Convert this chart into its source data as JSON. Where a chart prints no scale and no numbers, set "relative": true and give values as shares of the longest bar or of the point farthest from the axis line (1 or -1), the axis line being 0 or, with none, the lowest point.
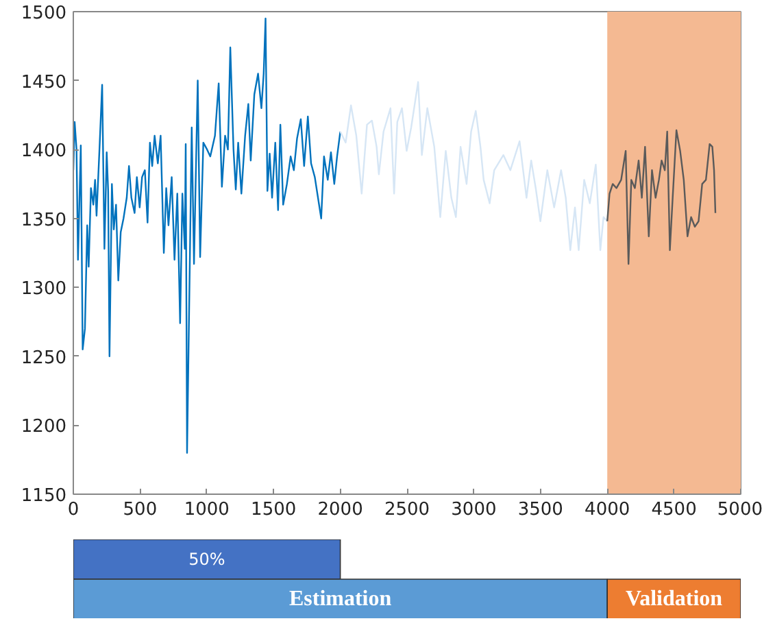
{
  "chart_data": [
    {
      "type": "line",
      "xlim": [
        0,
        5000
      ],
      "ylim": [
        1150,
        1500
      ],
      "xticks": [
        0,
        500,
        1000,
        1500,
        2000,
        2500,
        3000,
        3500,
        4000,
        4500,
        5000
      ],
      "yticks": [
        1150,
        1200,
        1250,
        1300,
        1350,
        1400,
        1450,
        1500
      ],
      "grid": false,
      "marker": "none",
      "line_style": "solid",
      "bands": [
        {
          "axis": "x",
          "from": 4000,
          "to": 5000,
          "color": "#f4b992"
        }
      ],
      "series": [
        {
          "color": "#0072bd",
          "x": [
            0,
            10,
            24,
            35,
            45,
            56,
            70,
            87,
            104,
            115,
            132,
            150,
            163,
            174,
            198,
            216,
            233,
            250,
            261,
            271,
            289,
            303,
            320,
            337,
            355,
            376,
            400,
            417,
            435,
            459,
            476,
            497,
            515,
            536,
            556,
            574,
            591,
            609,
            633,
            654,
            678,
            696,
            713,
            737,
            758,
            779,
            800,
            817,
            835,
            842,
            852,
            873,
            887,
            904,
            932,
            950,
            974,
            1002,
            1026,
            1061,
            1089,
            1113,
            1137,
            1158,
            1176,
            1200,
            1217,
            1235,
            1259,
            1287,
            1311,
            1329,
            1356,
            1384,
            1409,
            1426,
            1440,
            1454,
            1471,
            1489,
            1513,
            1534,
            1551,
            1572,
            1600,
            1628,
            1652,
            1676,
            1704,
            1729,
            1757,
            1781,
            1809,
            1857,
            1878,
            1906,
            1930,
            1955,
            1976,
            2000
          ],
          "values": [
            1385,
            1420,
            1400,
            1320,
            1360,
            1403,
            1255,
            1270,
            1345,
            1315,
            1372,
            1360,
            1378,
            1352,
            1405,
            1447,
            1328,
            1398,
            1370,
            1250,
            1375,
            1342,
            1360,
            1305,
            1340,
            1350,
            1365,
            1388,
            1365,
            1354,
            1380,
            1358,
            1380,
            1385,
            1347,
            1405,
            1388,
            1410,
            1390,
            1410,
            1325,
            1372,
            1345,
            1380,
            1320,
            1368,
            1274,
            1368,
            1328,
            1404,
            1180,
            1320,
            1416,
            1317,
            1450,
            1322,
            1405,
            1400,
            1395,
            1410,
            1448,
            1373,
            1410,
            1400,
            1474,
            1400,
            1371,
            1405,
            1368,
            1410,
            1433,
            1392,
            1440,
            1455,
            1430,
            1455,
            1495,
            1370,
            1397,
            1365,
            1405,
            1356,
            1418,
            1360,
            1375,
            1395,
            1385,
            1408,
            1422,
            1388,
            1424,
            1390,
            1380,
            1350,
            1395,
            1378,
            1398,
            1375,
            1395,
            1413
          ]
        },
        {
          "color": "#d6e6f5",
          "x": [
            2000,
            2040,
            2080,
            2120,
            2160,
            2200,
            2237,
            2272,
            2289,
            2324,
            2376,
            2403,
            2427,
            2462,
            2497,
            2531,
            2583,
            2611,
            2652,
            2704,
            2749,
            2790,
            2832,
            2866,
            2901,
            2946,
            2980,
            3015,
            3050,
            3074,
            3119,
            3153,
            3222,
            3274,
            3343,
            3395,
            3430,
            3464,
            3499,
            3551,
            3602,
            3654,
            3689,
            3723,
            3758,
            3786,
            3827,
            3869,
            3914,
            3948,
            3972,
            4000
          ],
          "values": [
            1413,
            1405,
            1432,
            1410,
            1368,
            1418,
            1421,
            1402,
            1382,
            1413,
            1430,
            1368,
            1420,
            1430,
            1399,
            1416,
            1449,
            1396,
            1430,
            1402,
            1351,
            1399,
            1365,
            1351,
            1402,
            1375,
            1413,
            1428,
            1402,
            1378,
            1361,
            1385,
            1396,
            1385,
            1406,
            1365,
            1392,
            1372,
            1348,
            1385,
            1358,
            1385,
            1365,
            1327,
            1358,
            1327,
            1378,
            1361,
            1389,
            1327,
            1351,
            1348
          ]
        },
        {
          "color": "#5a5a5a",
          "x": [
            4000,
            4017,
            4041,
            4069,
            4104,
            4138,
            4159,
            4180,
            4207,
            4235,
            4259,
            4283,
            4311,
            4335,
            4362,
            4387,
            4407,
            4431,
            4449,
            4469,
            4490,
            4518,
            4546,
            4573,
            4601,
            4628,
            4656,
            4684,
            4711,
            4739,
            4767,
            4787,
            4800,
            4810
          ],
          "values": [
            1348,
            1368,
            1375,
            1372,
            1378,
            1399,
            1317,
            1378,
            1372,
            1392,
            1365,
            1402,
            1337,
            1385,
            1365,
            1378,
            1392,
            1385,
            1413,
            1327,
            1365,
            1414,
            1399,
            1378,
            1337,
            1351,
            1344,
            1348,
            1375,
            1378,
            1404,
            1402,
            1385,
            1354
          ]
        }
      ]
    },
    {
      "type": "bar",
      "orientation": "horizontal",
      "relative": true,
      "stacked": true,
      "categories": [
        null,
        null
      ],
      "annotations": [
        "50%",
        "Estimation",
        "Validation"
      ],
      "series": [
        {
          "colors": [
            "#4472c4",
            "#5b9bd5"
          ],
          "values": [
            0.4,
            0.8
          ]
        },
        {
          "color": "#ed7d31",
          "values": [
            null,
            0.2
          ]
        }
      ]
    }
  ]
}
